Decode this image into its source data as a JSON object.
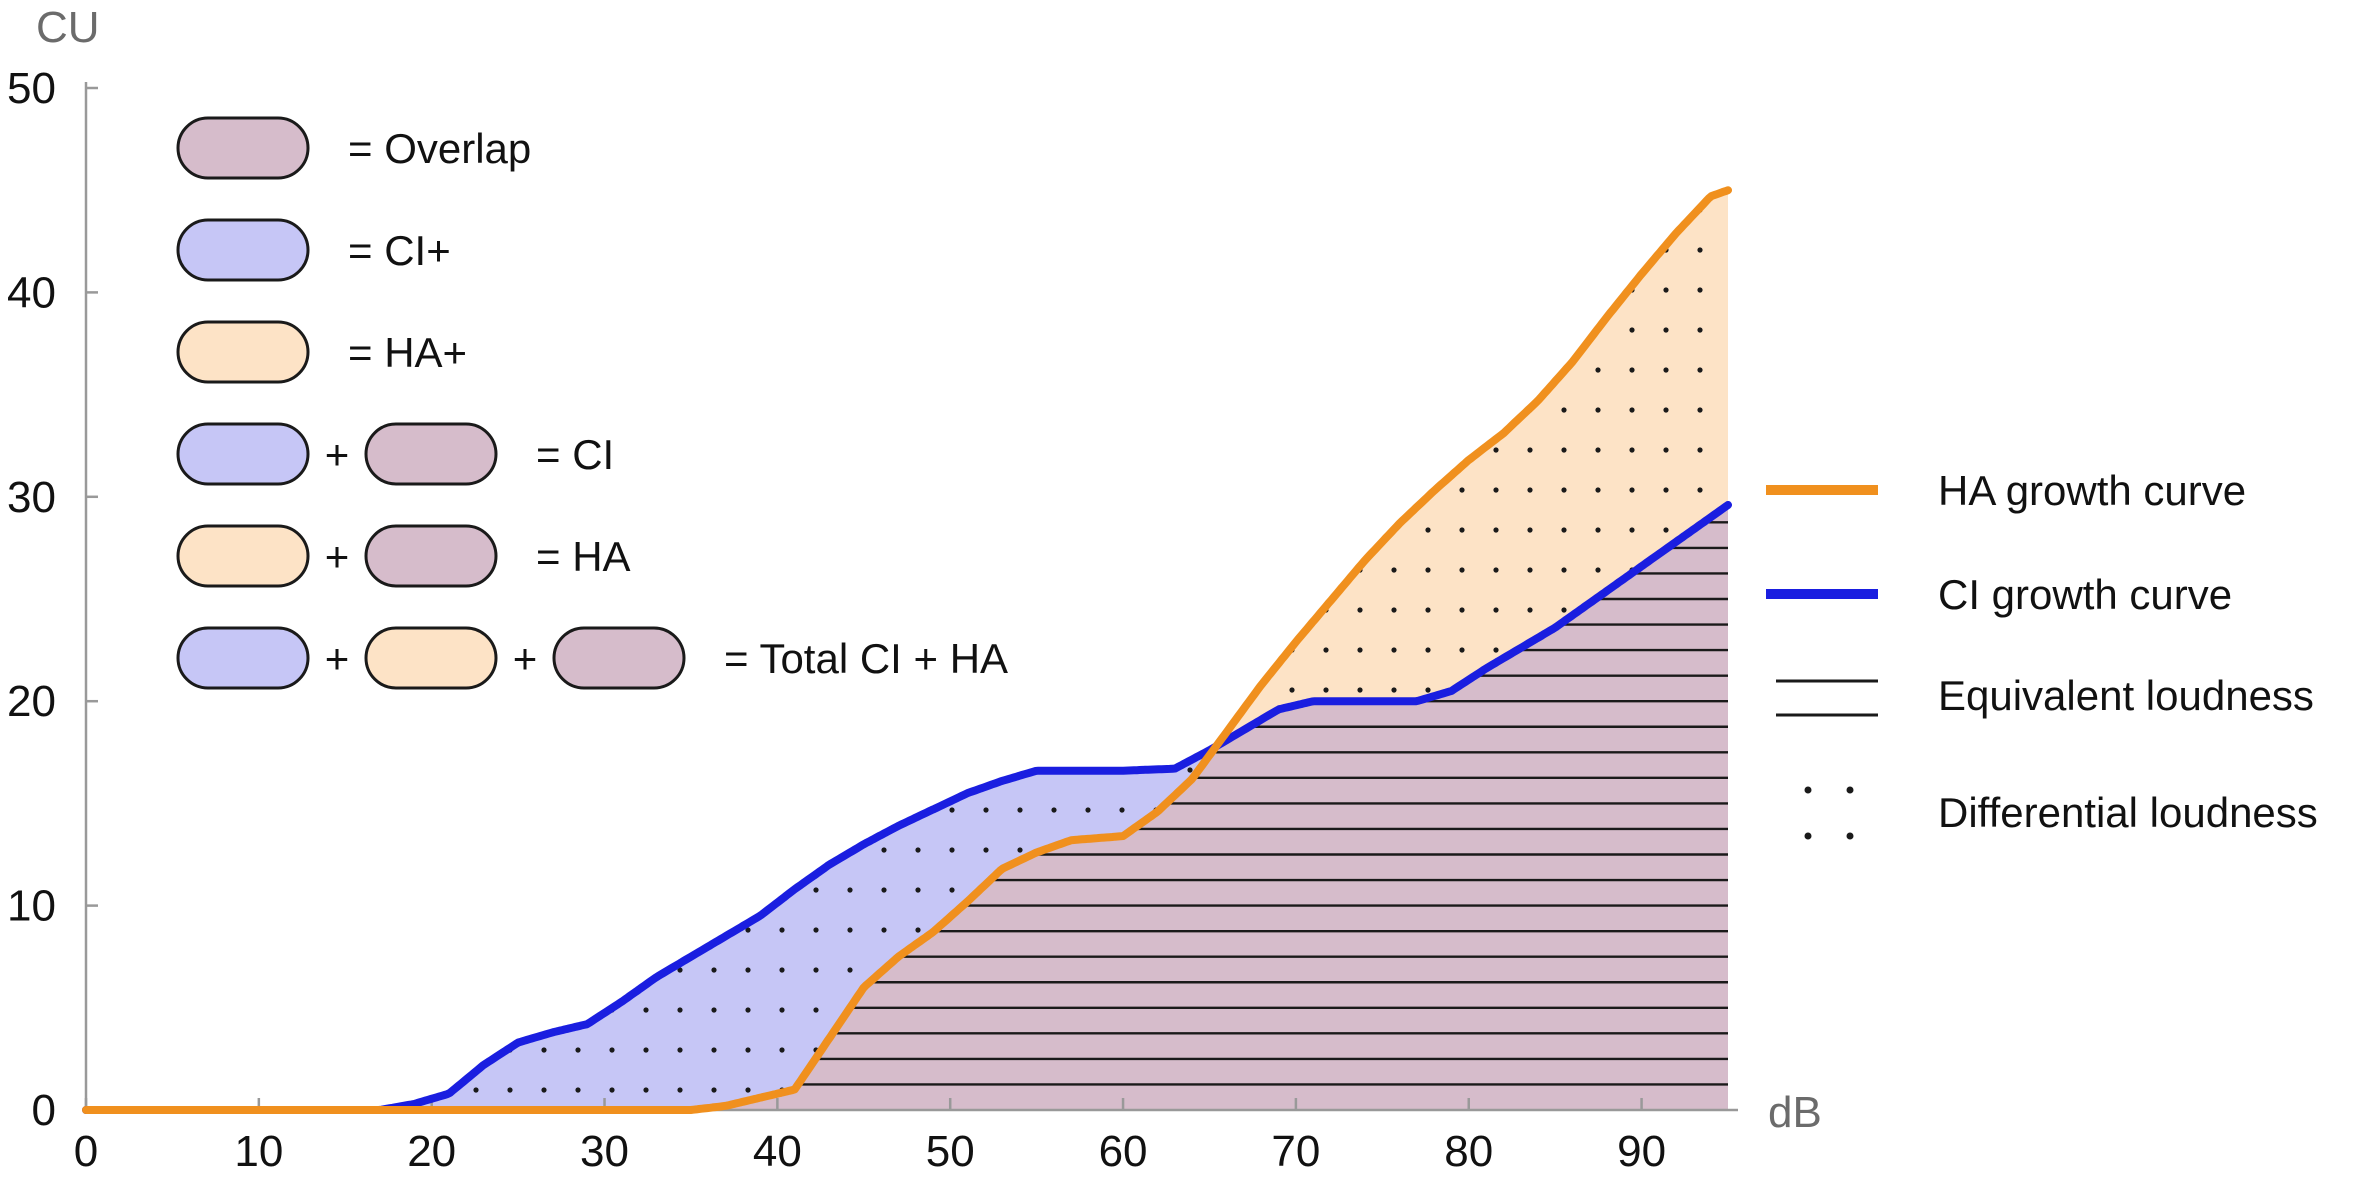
{
  "chart_data": {
    "type": "area",
    "xlabel": "dB",
    "ylabel": "CU",
    "xlim": [
      0,
      95
    ],
    "ylim": [
      0,
      50
    ],
    "xticks": [
      "0",
      "10",
      "20",
      "30",
      "40",
      "50",
      "60",
      "70",
      "80",
      "90"
    ],
    "yticks": [
      "0",
      "10",
      "20",
      "30",
      "40",
      "50"
    ],
    "grid": false,
    "series": [
      {
        "name": "HA growth curve",
        "color": "#f0901e",
        "x": [
          0,
          35,
          37,
          40,
          41,
          43,
          45,
          47,
          49,
          51,
          53,
          55,
          57,
          60,
          62,
          64,
          66,
          68,
          70,
          72,
          74,
          76,
          78,
          80,
          82,
          84,
          86,
          88,
          90,
          92,
          94,
          95
        ],
        "y": [
          0,
          0,
          0.2,
          0.8,
          1.0,
          3.5,
          6.0,
          7.5,
          8.7,
          10.2,
          11.8,
          12.6,
          13.2,
          13.4,
          14.6,
          16.2,
          18.5,
          20.8,
          22.9,
          24.9,
          26.9,
          28.7,
          30.3,
          31.8,
          33.1,
          34.7,
          36.6,
          38.8,
          40.9,
          42.9,
          44.7,
          45.0
        ]
      },
      {
        "name": "CI growth curve",
        "color": "#1a1ee0",
        "x": [
          0,
          17,
          19,
          21,
          23,
          25,
          27,
          29,
          31,
          33,
          35,
          37,
          39,
          41,
          43,
          45,
          47,
          49,
          51,
          53,
          55,
          57,
          60,
          63,
          65,
          67,
          69,
          71,
          73,
          75,
          77,
          79,
          81,
          83,
          85,
          87,
          89,
          91,
          93,
          95
        ],
        "y": [
          0,
          0,
          0.3,
          0.8,
          2.2,
          3.3,
          3.8,
          4.2,
          5.3,
          6.5,
          7.5,
          8.5,
          9.5,
          10.8,
          12.0,
          13.0,
          13.9,
          14.7,
          15.5,
          16.1,
          16.6,
          16.6,
          16.6,
          16.7,
          17.6,
          18.6,
          19.6,
          20.0,
          20.0,
          20.0,
          20.0,
          20.5,
          21.6,
          22.6,
          23.6,
          24.8,
          26.0,
          27.2,
          28.4,
          29.6
        ]
      }
    ],
    "regions": [
      {
        "name": "Overlap",
        "fill": "#d6bccb",
        "pattern": "Equivalent loudness"
      },
      {
        "name": "CI+",
        "fill": "#c6c6f6",
        "pattern": "Differential loudness"
      },
      {
        "name": "HA+",
        "fill": "#fde3c6",
        "pattern": "Differential loudness"
      }
    ],
    "region_legend": [
      {
        "swatches": [
          "Overlap"
        ],
        "label": "= Overlap"
      },
      {
        "swatches": [
          "CI+"
        ],
        "label": "= CI+"
      },
      {
        "swatches": [
          "HA+"
        ],
        "label": "= HA+"
      },
      {
        "swatches": [
          "CI+",
          "Overlap"
        ],
        "label": "= CI"
      },
      {
        "swatches": [
          "HA+",
          "Overlap"
        ],
        "label": "= HA"
      },
      {
        "swatches": [
          "CI+",
          "HA+",
          "Overlap"
        ],
        "label": "= Total CI + HA"
      }
    ],
    "plus_sign": "+",
    "line_legend": [
      {
        "label": "HA growth curve",
        "kind": "orange-line"
      },
      {
        "label": "CI growth curve",
        "kind": "blue-line"
      },
      {
        "label": "Equivalent loudness",
        "kind": "double-line"
      },
      {
        "label": "Differential loudness",
        "kind": "dots"
      }
    ],
    "line_legend_placement": "right"
  }
}
